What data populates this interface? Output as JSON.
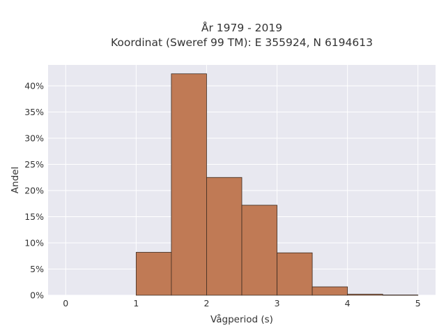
{
  "chart_data": {
    "type": "bar",
    "title_lines": [
      "År 1979 - 2019",
      "Koordinat (Sweref 99 TM): E 355924, N 6194613"
    ],
    "xlabel": "Vågperiod (s)",
    "ylabel": "Andel",
    "x_ticks": [
      "0",
      "1",
      "2",
      "3",
      "4",
      "5"
    ],
    "y_ticks": [
      "0%",
      "5%",
      "10%",
      "15%",
      "20%",
      "25%",
      "30%",
      "35%",
      "40%"
    ],
    "xlim": [
      -0.25,
      5.25
    ],
    "ylim": [
      0,
      0.44
    ],
    "grid": true,
    "bin_edges": [
      1.0,
      1.5,
      2.0,
      2.5,
      3.0,
      3.5,
      4.0,
      4.5,
      5.0
    ],
    "values": [
      0.082,
      0.423,
      0.225,
      0.172,
      0.081,
      0.016,
      0.002,
      0.0005
    ],
    "colors": {
      "bar_fill": "#c07a55",
      "bar_stroke": "#3a2a20",
      "plot_background": "#e8e8f0",
      "grid": "#ffffff",
      "text": "#333333"
    }
  }
}
